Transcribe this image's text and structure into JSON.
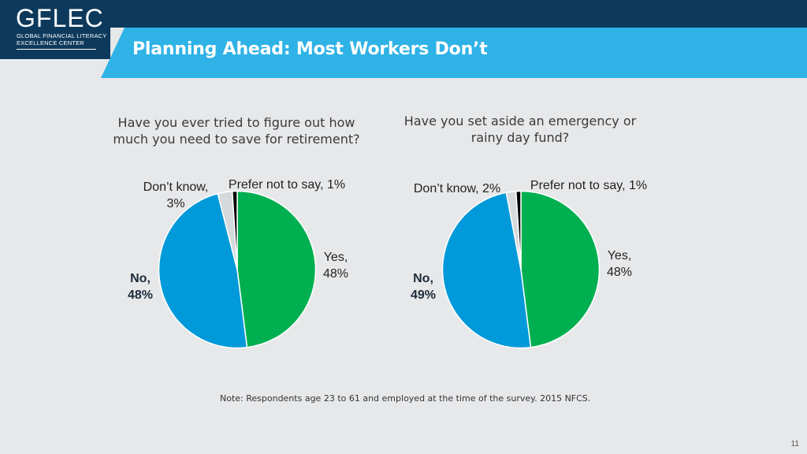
{
  "logo": {
    "main": "GFLEC",
    "sub_line1": "GLOBAL FINANCIAL LITERACY",
    "sub_line2": "EXCELLENCE CENTER"
  },
  "slide_title": "Planning Ahead: Most Workers Don’t",
  "colors": {
    "yes": "#00b050",
    "no": "#0099d9",
    "dont_know": "#d6d9dc",
    "prefer_not": "#000000",
    "header_dark": "#0d3a5c",
    "header_light": "#2fb2e6"
  },
  "chart_data": [
    {
      "type": "pie",
      "title": "Have you ever tried to figure out how\nmuch you need to save for retirement?",
      "slices": [
        {
          "label": "Yes",
          "value": 48,
          "display": "Yes,\n48%"
        },
        {
          "label": "No",
          "value": 48,
          "display": "No,\n48%"
        },
        {
          "label": "Don’t know",
          "value": 3,
          "display": "Don’t know,\n3%"
        },
        {
          "label": "Prefer not to say",
          "value": 1,
          "display": "Prefer not to say, 1%"
        }
      ]
    },
    {
      "type": "pie",
      "title": "Have you set aside an emergency or\nrainy day fund?",
      "slices": [
        {
          "label": "Yes",
          "value": 48,
          "display": "Yes,\n48%"
        },
        {
          "label": "No",
          "value": 49,
          "display": "No,\n49%"
        },
        {
          "label": "Don’t know",
          "value": 2,
          "display": "Don’t know, 2%"
        },
        {
          "label": "Prefer not to say",
          "value": 1,
          "display": "Prefer not to say, 1%"
        }
      ]
    }
  ],
  "note": "Note: Respondents age 23 to 61 and employed at the time of the survey. 2015 NFCS.",
  "page_number": "11"
}
